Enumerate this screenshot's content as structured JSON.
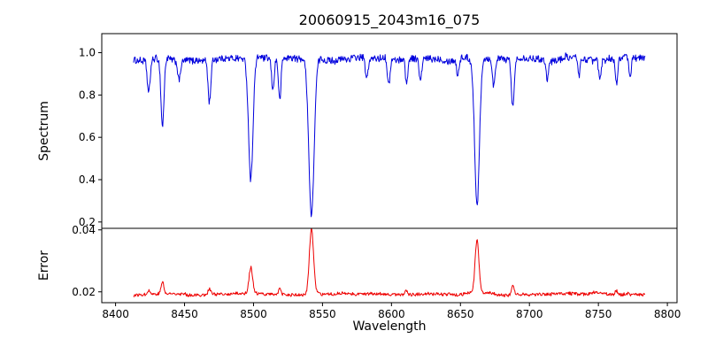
{
  "figure": {
    "title": "20060915_2043m16_075"
  },
  "chart_data": {
    "type": "line",
    "title": "20060915_2043m16_075",
    "xlabel": "Wavelength",
    "xlim": [
      8390,
      8807
    ],
    "xticks": [
      8400,
      8450,
      8500,
      8550,
      8600,
      8650,
      8700,
      8750,
      8800
    ],
    "x_data_range": [
      8413,
      8784
    ],
    "x_step": 0.4,
    "grid": false,
    "legend": "none",
    "panels": [
      {
        "name": "spectrum",
        "ylabel": "Spectrum",
        "color": "#0000dd",
        "ylim": [
          0.17,
          1.09
        ],
        "yticks": [
          0.2,
          0.4,
          0.6,
          0.8,
          1.0
        ],
        "ytick_labels": [
          "0.2",
          "0.4",
          "0.6",
          "0.8",
          "1.0"
        ],
        "continuum": 0.97,
        "noise_amplitude": 0.016,
        "absorption_lines": [
          {
            "wavelength": 8424,
            "depth": 0.16,
            "sigma": 1.0
          },
          {
            "wavelength": 8434,
            "depth": 0.32,
            "sigma": 1.1
          },
          {
            "wavelength": 8446,
            "depth": 0.09,
            "sigma": 0.9
          },
          {
            "wavelength": 8468,
            "depth": 0.2,
            "sigma": 1.0
          },
          {
            "wavelength": 8498,
            "depth": 0.57,
            "sigma": 1.6
          },
          {
            "wavelength": 8514,
            "depth": 0.15,
            "sigma": 0.9
          },
          {
            "wavelength": 8519,
            "depth": 0.2,
            "sigma": 0.9
          },
          {
            "wavelength": 8542,
            "depth": 0.75,
            "sigma": 1.9
          },
          {
            "wavelength": 8582,
            "depth": 0.1,
            "sigma": 0.9
          },
          {
            "wavelength": 8598,
            "depth": 0.13,
            "sigma": 0.9
          },
          {
            "wavelength": 8611,
            "depth": 0.12,
            "sigma": 0.9
          },
          {
            "wavelength": 8621,
            "depth": 0.11,
            "sigma": 0.9
          },
          {
            "wavelength": 8648,
            "depth": 0.08,
            "sigma": 0.8
          },
          {
            "wavelength": 8662,
            "depth": 0.7,
            "sigma": 1.7
          },
          {
            "wavelength": 8674,
            "depth": 0.13,
            "sigma": 0.9
          },
          {
            "wavelength": 8688,
            "depth": 0.23,
            "sigma": 1.0
          },
          {
            "wavelength": 8713,
            "depth": 0.09,
            "sigma": 0.8
          },
          {
            "wavelength": 8736,
            "depth": 0.08,
            "sigma": 0.8
          },
          {
            "wavelength": 8751,
            "depth": 0.1,
            "sigma": 0.8
          },
          {
            "wavelength": 8763,
            "depth": 0.13,
            "sigma": 0.9
          },
          {
            "wavelength": 8773,
            "depth": 0.1,
            "sigma": 0.8
          }
        ]
      },
      {
        "name": "error",
        "ylabel": "Error",
        "color": "#ee0000",
        "ylim": [
          0.0165,
          0.0405
        ],
        "yticks": [
          0.02,
          0.04
        ],
        "ytick_labels": [
          "0.02",
          "0.04"
        ],
        "baseline": 0.0192,
        "noise_amplitude": 0.0005,
        "peaks": [
          {
            "wavelength": 8424,
            "height": 0.0012,
            "sigma": 0.9
          },
          {
            "wavelength": 8434,
            "height": 0.004,
            "sigma": 1.0
          },
          {
            "wavelength": 8468,
            "height": 0.0018,
            "sigma": 0.9
          },
          {
            "wavelength": 8498,
            "height": 0.0085,
            "sigma": 1.3
          },
          {
            "wavelength": 8519,
            "height": 0.0018,
            "sigma": 0.9
          },
          {
            "wavelength": 8542,
            "height": 0.021,
            "sigma": 1.5
          },
          {
            "wavelength": 8611,
            "height": 0.0014,
            "sigma": 0.9
          },
          {
            "wavelength": 8662,
            "height": 0.017,
            "sigma": 1.4
          },
          {
            "wavelength": 8688,
            "height": 0.0028,
            "sigma": 1.0
          },
          {
            "wavelength": 8763,
            "height": 0.0012,
            "sigma": 0.9
          }
        ]
      }
    ]
  }
}
